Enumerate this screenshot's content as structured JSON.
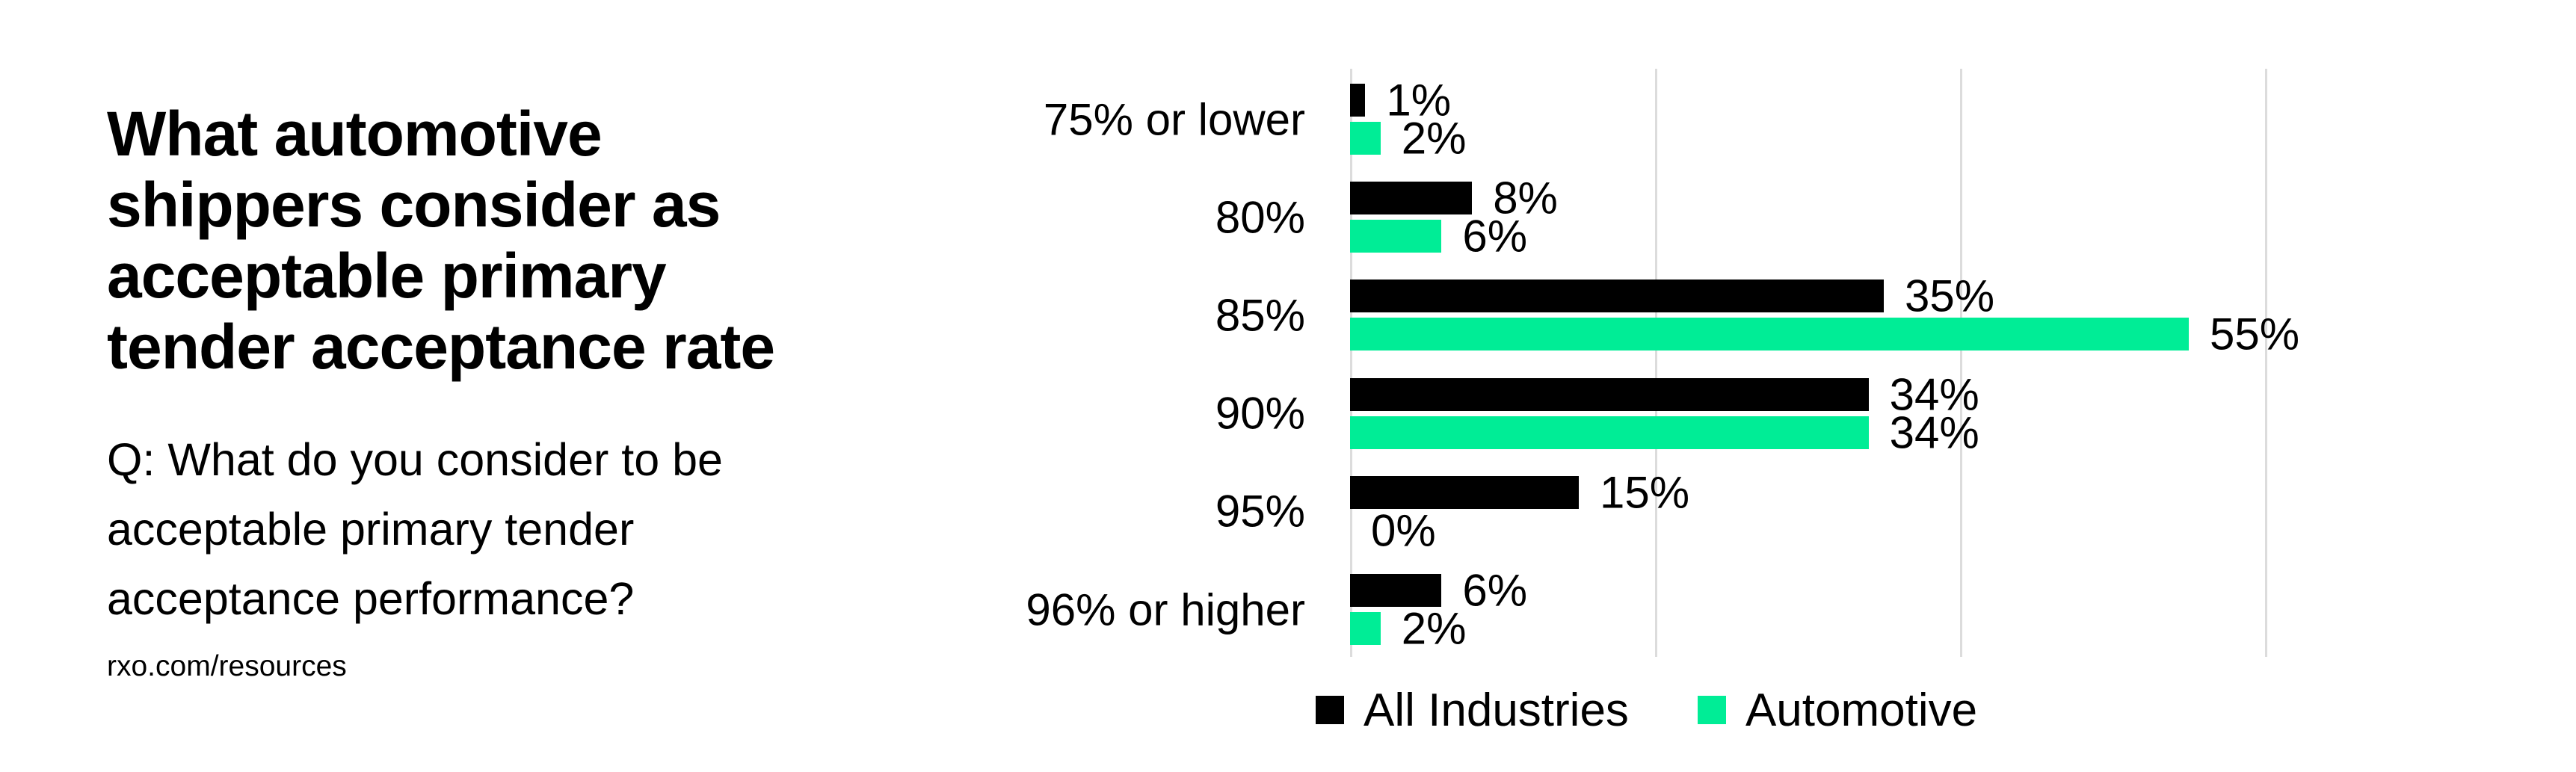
{
  "title": {
    "lines": [
      "What automotive",
      "shippers consider as",
      "acceptable primary",
      "tender acceptance rate"
    ]
  },
  "subtitle": {
    "lines": [
      "Q: What do you consider to be",
      "acceptable primary tender",
      "acceptance performance?"
    ]
  },
  "source": "rxo.com/resources",
  "colors": {
    "all_industries": "#000000",
    "automotive": "#00ED96",
    "gridline": "#dcdcdc",
    "text": "#000000",
    "background": "#ffffff"
  },
  "chart_data": {
    "type": "bar",
    "orientation": "horizontal",
    "title": "What automotive shippers consider as acceptable primary tender acceptance rate",
    "question": "Q: What do you consider to be acceptable primary tender acceptance performance?",
    "categories": [
      "75% or lower",
      "80%",
      "85%",
      "90%",
      "95%",
      "96% or higher"
    ],
    "series": [
      {
        "name": "All Industries",
        "color": "#000000",
        "values": [
          1,
          8,
          35,
          34,
          15,
          6
        ]
      },
      {
        "name": "Automotive",
        "color": "#00ED96",
        "values": [
          2,
          6,
          55,
          34,
          0,
          2
        ]
      }
    ],
    "value_suffix": "%",
    "xlim": [
      0,
      60
    ],
    "gridlines_percent": [
      0,
      20,
      40,
      60
    ],
    "grid": true,
    "axis_tick_labels_visible": false,
    "data_labels_visible": true,
    "legend_position": "bottom"
  }
}
